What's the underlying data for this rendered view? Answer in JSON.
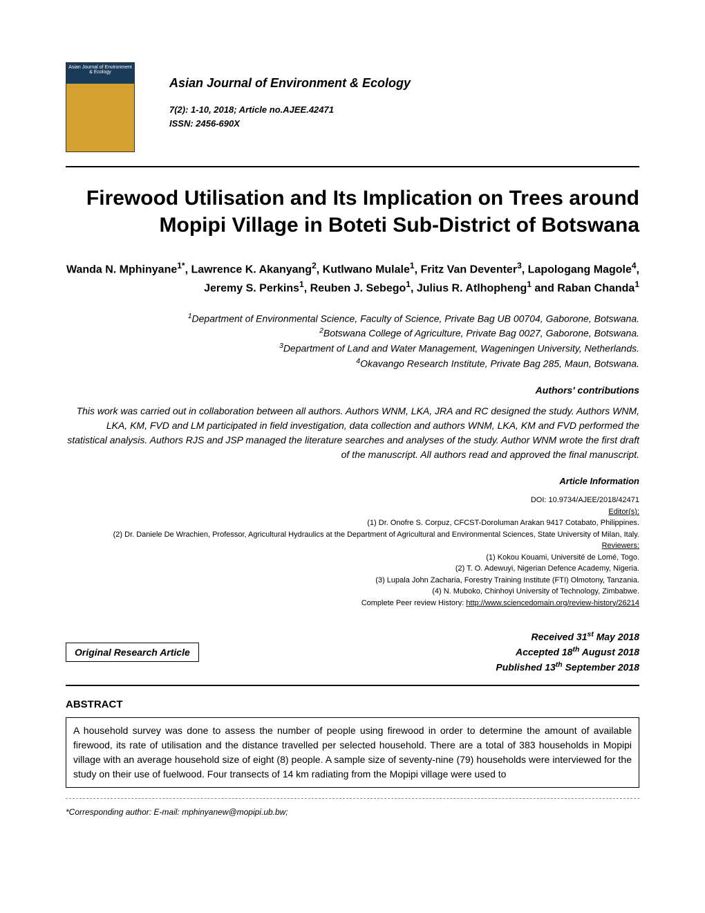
{
  "journal": {
    "name": "Asian Journal of Environment & Ecology",
    "issue": "7(2): 1-10, 2018; Article no.AJEE.42471",
    "issn": "ISSN: 2456-690X",
    "cover_title": "Asian Journal of Environment & Ecology"
  },
  "title": "Firewood Utilisation and Its Implication on Trees around Mopipi Village in Boteti Sub-District of Botswana",
  "authors_html": "Wanda N. Mphinyane<sup>1*</sup>, Lawrence K. Akanyang<sup>2</sup>, Kutlwano Mulale<sup>1</sup>, Fritz Van Deventer<sup>3</sup>, Lapologang Magole<sup>4</sup>, Jeremy S. Perkins<sup>1</sup>, Reuben J. Sebego<sup>1</sup>, Julius R. Atlhopheng<sup>1</sup> and Raban Chanda<sup>1</sup>",
  "affiliations": [
    "<sup>1</sup>Department of Environmental Science, Faculty of Science, Private Bag UB 00704, Gaborone, Botswana.",
    "<sup>2</sup>Botswana College of Agriculture, Private Bag 0027, Gaborone, Botswana.",
    "<sup>3</sup>Department of Land and Water Management, Wageningen University, Netherlands.",
    "<sup>4</sup>Okavango Research Institute, Private Bag 285, Maun, Botswana."
  ],
  "contributions_heading": "Authors' contributions",
  "contributions": "This work was carried out in collaboration between all authors. Authors WNM, LKA, JRA and RC designed the study. Authors WNM, LKA, KM, FVD and LM participated in field investigation, data collection and authors WNM, LKA, KM and FVD performed the statistical analysis. Authors RJS and JSP managed the literature searches and analyses of the study. Author WNM wrote the first draft of the manuscript. All authors read and approved the final manuscript.",
  "article_info_heading": "Article Information",
  "article_info": {
    "doi": "DOI: 10.9734/AJEE/2018/42471",
    "editors_label": "Editor(s):",
    "editors": [
      "(1) Dr. Onofre S. Corpuz, CFCST-Doroluman Arakan 9417 Cotabato, Philippines.",
      "(2) Dr. Daniele De Wrachien, Professor, Agricultural Hydraulics at the Department of Agricultural and Environmental Sciences, State University of Milan, Italy."
    ],
    "reviewers_label": "Reviewers:",
    "reviewers": [
      "(1) Kokou Kouami, Université de Lomé, Togo.",
      "(2) T. O. Adewuyi, Nigerian Defence Academy, Nigeria.",
      "(3) Lupala John Zacharia, Forestry Training Institute (FTI) Olmotony, Tanzania.",
      "(4) N. Muboko, Chinhoyi University of Technology, Zimbabwe."
    ],
    "peer_review": "Complete Peer review History: ",
    "peer_review_url": "http://www.sciencedomain.org/review-history/26214"
  },
  "article_type": "Original Research Article",
  "dates": {
    "received": "Received 31<sup>st</sup> May 2018",
    "accepted": "Accepted 18<sup>th</sup> August 2018",
    "published": "Published 13<sup>th</sup> September 2018"
  },
  "abstract_heading": "ABSTRACT",
  "abstract": "A household survey was done to assess the number of people using firewood in order to determine the amount of available firewood, its rate of utilisation and the distance travelled per selected household. There are a total of 383 households in Mopipi village with an average household size of eight (8) people. A sample size of seventy-nine (79) households were interviewed for the study on their use of fuelwood. Four transects of 14 km radiating from the Mopipi village were used to",
  "corresponding": "*Corresponding author: E-mail: mphinyanew@mopipi.ub.bw;"
}
